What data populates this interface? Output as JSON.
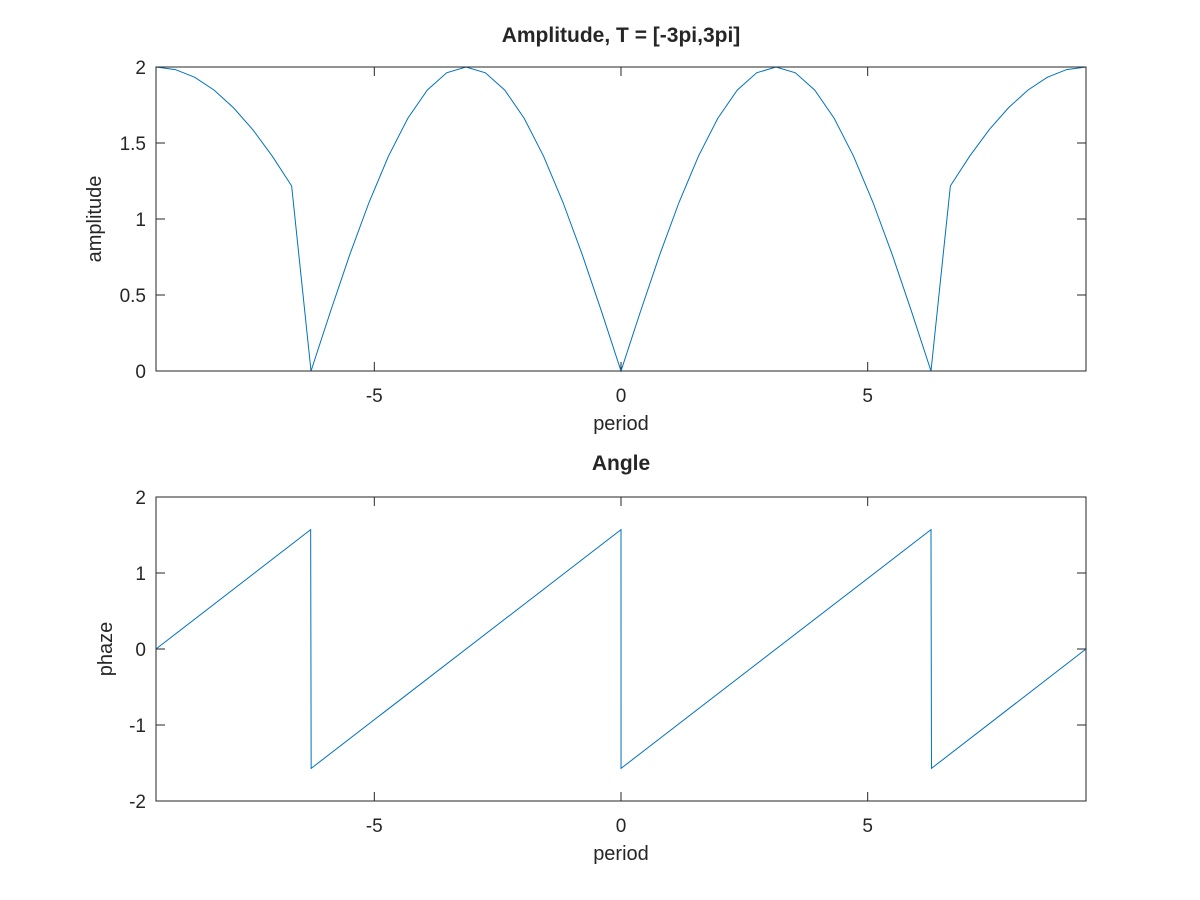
{
  "chart_data": [
    {
      "type": "line",
      "title": "Amplitude, T = [-3pi,3pi]",
      "xlabel": "period",
      "ylabel": "amplitude",
      "xlim": [
        -9.42478,
        9.42478
      ],
      "ylim": [
        0,
        2
      ],
      "xticks": [
        -5,
        0,
        5
      ],
      "yticks": [
        0,
        0.5,
        1,
        1.5,
        2
      ],
      "xtick_labels": [
        "-5",
        "0",
        "5"
      ],
      "ytick_labels": [
        "0",
        "0.5",
        "1",
        "1.5",
        "2"
      ],
      "grid": false,
      "color": "#0072bd",
      "series": [
        {
          "x": [
            -9.425,
            -9.032,
            -8.639,
            -8.247,
            -7.854,
            -7.461,
            -7.069,
            -6.676,
            -6.283,
            -5.89,
            -5.498,
            -5.105,
            -4.712,
            -4.32,
            -3.927,
            -3.534,
            -3.142,
            -2.749,
            -2.356,
            -1.963,
            -1.571,
            -1.178,
            -0.785,
            -0.393,
            0.0,
            0.393,
            0.785,
            1.178,
            1.571,
            1.963,
            2.356,
            2.749,
            3.142,
            3.534,
            3.927,
            4.32,
            4.712,
            5.105,
            5.498,
            5.89,
            6.283,
            6.676,
            7.069,
            7.461,
            7.854,
            8.247,
            8.639,
            9.032,
            9.425
          ],
          "y": [
            2.0,
            1.983,
            1.932,
            1.848,
            1.732,
            1.587,
            1.414,
            1.218,
            0.0,
            0.39,
            0.765,
            1.111,
            1.414,
            1.663,
            1.848,
            1.962,
            2.0,
            1.962,
            1.848,
            1.663,
            1.414,
            1.111,
            0.765,
            0.39,
            0.0,
            0.39,
            0.765,
            1.111,
            1.414,
            1.663,
            1.848,
            1.962,
            2.0,
            1.962,
            1.848,
            1.663,
            1.414,
            1.111,
            0.765,
            0.39,
            0.0,
            1.218,
            1.414,
            1.587,
            1.732,
            1.848,
            1.932,
            1.983,
            2.0
          ]
        }
      ]
    },
    {
      "type": "line",
      "title": "Angle",
      "xlabel": "period",
      "ylabel": "phaze",
      "xlim": [
        -9.42478,
        9.42478
      ],
      "ylim": [
        -2,
        2
      ],
      "xticks": [
        -5,
        0,
        5
      ],
      "yticks": [
        -2,
        -1,
        0,
        1,
        2
      ],
      "xtick_labels": [
        "-5",
        "0",
        "5"
      ],
      "ytick_labels": [
        "-2",
        "-1",
        "0",
        "1",
        "2"
      ],
      "grid": false,
      "color": "#0072bd",
      "series": [
        {
          "x": [
            -9.425,
            -6.29,
            -6.28,
            0.0,
            0.001,
            6.283,
            6.293,
            9.425
          ],
          "y": [
            0.0,
            1.5708,
            -1.5708,
            1.5708,
            -1.5708,
            1.5708,
            -1.5708,
            0.0
          ]
        }
      ]
    }
  ]
}
